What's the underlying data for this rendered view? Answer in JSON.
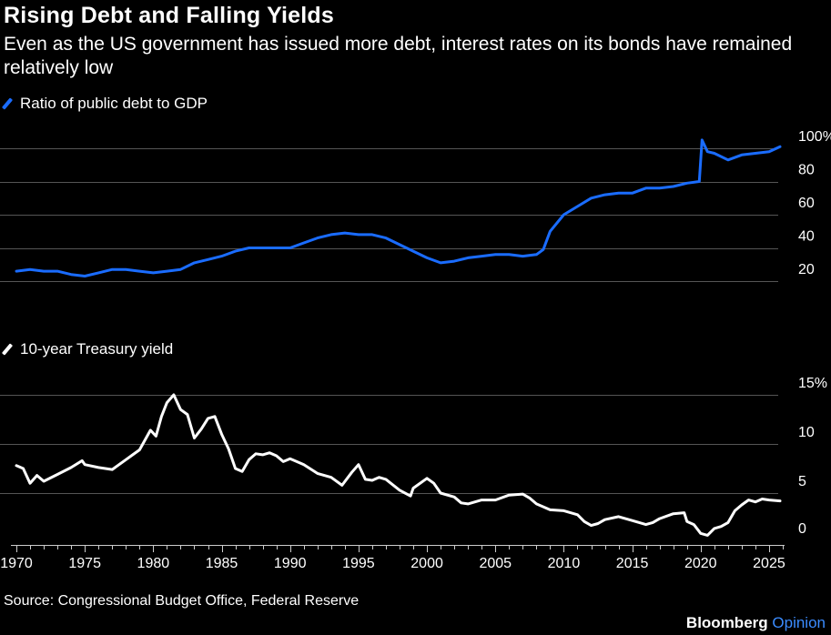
{
  "header": {
    "title": "Rising Debt and Falling Yields",
    "subtitle": "Even as the US government has issued more debt, interest rates on its bonds have remained relatively low"
  },
  "footer": {
    "source": "Source: Congressional Budget Office, Federal Reserve",
    "brand": "Bloomberg",
    "brand_suffix": "Opinion"
  },
  "colors": {
    "debt_line": "#1a6cff",
    "yield_line": "#ffffff",
    "grid": "#555555",
    "background": "#000000",
    "brand_accent": "#3b8cff"
  },
  "chart_data": [
    {
      "type": "line",
      "legend": "Ratio of public debt to GDP",
      "series": [
        {
          "name": "Ratio of public debt to GDP",
          "x": [
            1970,
            1971,
            1972,
            1973,
            1974,
            1975,
            1976,
            1977,
            1978,
            1979,
            1980,
            1981,
            1982,
            1983,
            1984,
            1985,
            1986,
            1987,
            1988,
            1989,
            1990,
            1991,
            1992,
            1993,
            1994,
            1995,
            1996,
            1997,
            1998,
            1999,
            2000,
            2001,
            2002,
            2003,
            2004,
            2005,
            2006,
            2007,
            2008,
            2008.5,
            2009,
            2010,
            2011,
            2012,
            2013,
            2014,
            2015,
            2016,
            2017,
            2018,
            2019,
            2019.9,
            2020.1,
            2020.5,
            2021,
            2022,
            2023,
            2024,
            2025,
            2025.8
          ],
          "y": [
            26,
            27,
            26,
            26,
            24,
            23,
            25,
            27,
            27,
            26,
            25,
            26,
            27,
            31,
            33,
            35,
            38,
            40,
            40,
            40,
            40,
            43,
            46,
            48,
            49,
            48,
            48,
            46,
            42,
            38,
            34,
            31,
            32,
            34,
            35,
            36,
            36,
            35,
            36,
            39,
            50,
            60,
            65,
            70,
            72,
            73,
            73,
            76,
            76,
            77,
            79,
            80,
            105,
            98,
            97,
            93,
            96,
            97,
            98,
            101
          ]
        }
      ],
      "yticks": [
        "20",
        "40",
        "60",
        "80",
        "100%"
      ],
      "ylim": [
        10,
        110
      ]
    },
    {
      "type": "line",
      "legend": "10-year Treasury yield",
      "series": [
        {
          "name": "10-year Treasury yield",
          "x": [
            1970,
            1970.5,
            1971,
            1971.5,
            1972,
            1973,
            1974,
            1974.8,
            1975,
            1976,
            1977,
            1978,
            1978.5,
            1979,
            1979.8,
            1980.2,
            1980.6,
            1981,
            1981.5,
            1982,
            1982.5,
            1983,
            1983.5,
            1984,
            1984.5,
            1985,
            1985.5,
            1986,
            1986.5,
            1987,
            1987.5,
            1988,
            1988.5,
            1989,
            1989.5,
            1990,
            1991,
            1992,
            1993,
            1993.8,
            1994.5,
            1995,
            1995.5,
            1996,
            1996.5,
            1997,
            1998,
            1998.8,
            1999,
            2000,
            2000.5,
            2001,
            2002,
            2002.5,
            2003,
            2004,
            2005,
            2006,
            2007,
            2007.5,
            2008,
            2008.5,
            2009,
            2010,
            2011,
            2011.5,
            2012,
            2012.5,
            2013,
            2014,
            2015,
            2016,
            2016.5,
            2017,
            2018,
            2018.8,
            2019,
            2019.5,
            2020,
            2020.5,
            2021,
            2021.5,
            2022,
            2022.5,
            2023,
            2023.5,
            2024,
            2024.5,
            2025,
            2025.8
          ],
          "y": [
            7.8,
            7.5,
            6,
            6.8,
            6.2,
            6.9,
            7.6,
            8.3,
            7.9,
            7.6,
            7.4,
            8.4,
            8.9,
            9.4,
            11.4,
            10.8,
            12.8,
            14.2,
            15,
            13.5,
            13,
            10.6,
            11.5,
            12.6,
            12.8,
            11,
            9.5,
            7.5,
            7.2,
            8.4,
            9,
            8.9,
            9.1,
            8.8,
            8.2,
            8.5,
            7.9,
            7,
            6.6,
            5.8,
            7.1,
            7.9,
            6.4,
            6.3,
            6.6,
            6.4,
            5.3,
            4.7,
            5.5,
            6.5,
            6.0,
            5.0,
            4.6,
            4.0,
            3.9,
            4.3,
            4.3,
            4.8,
            4.9,
            4.5,
            3.9,
            3.6,
            3.3,
            3.2,
            2.8,
            2.1,
            1.7,
            1.9,
            2.3,
            2.6,
            2.2,
            1.8,
            2.0,
            2.4,
            2.9,
            3.0,
            2.1,
            1.8,
            0.9,
            0.7,
            1.4,
            1.6,
            2.0,
            3.2,
            3.8,
            4.3,
            4.1,
            4.4,
            4.3,
            4.2
          ]
        }
      ],
      "yticks": [
        "0",
        "5",
        "10",
        "15%"
      ],
      "ylim": [
        -2,
        16
      ]
    }
  ],
  "xaxis": {
    "ticks": [
      "1970",
      "1975",
      "1980",
      "1985",
      "1990",
      "1995",
      "2000",
      "2005",
      "2010",
      "2015",
      "2020",
      "2025"
    ],
    "xlim": [
      1969.5,
      2027
    ]
  }
}
